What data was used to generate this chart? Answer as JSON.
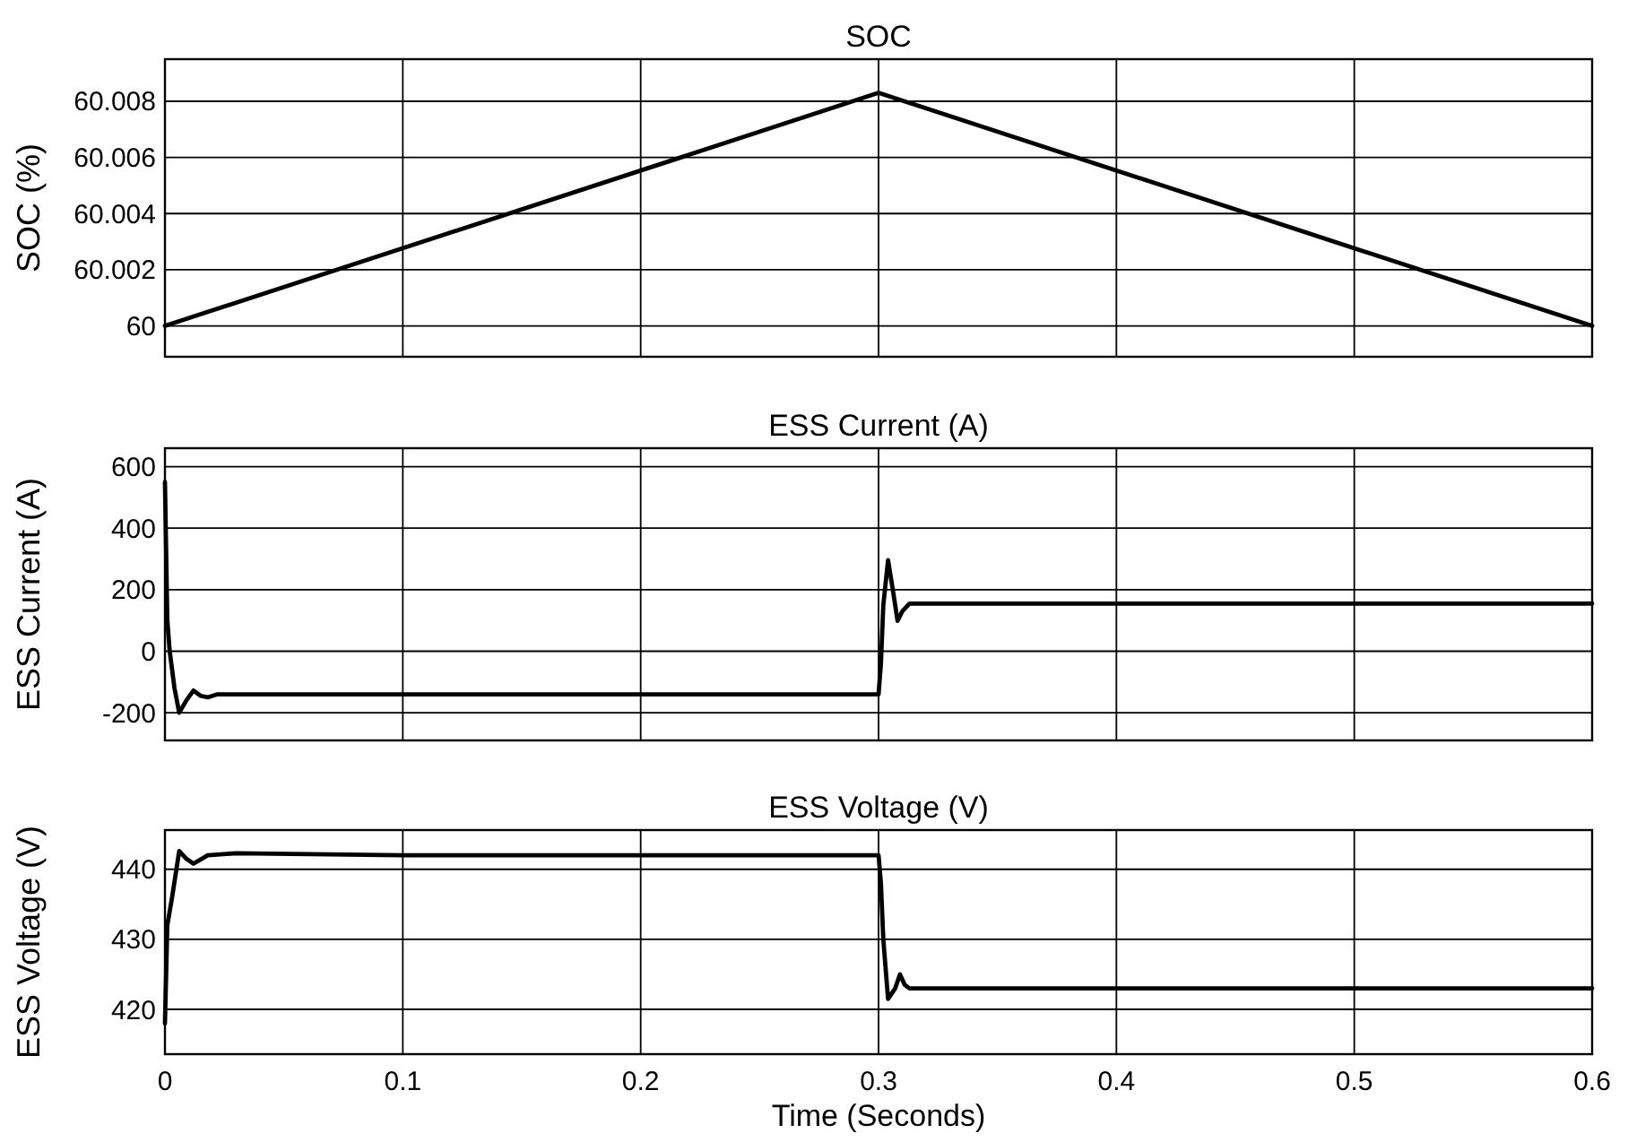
{
  "chart_data": [
    {
      "type": "line",
      "title": "SOC",
      "ylabel": "SOC (%)",
      "xlim": [
        0,
        0.6
      ],
      "xticks": [
        0,
        0.1,
        0.2,
        0.3,
        0.4,
        0.5,
        0.6
      ],
      "ylim": [
        59.9989,
        60.0095
      ],
      "yticks": [
        60,
        60.002,
        60.004,
        60.006,
        60.008
      ],
      "grid": true,
      "tick_labels": "y",
      "series": [
        {
          "color": "#000000",
          "x": [
            0,
            0.3,
            0.6
          ],
          "values": [
            60,
            60.0083,
            60
          ]
        }
      ]
    },
    {
      "type": "line",
      "title": "ESS Current (A)",
      "ylabel": "ESS Current (A)",
      "xlim": [
        0,
        0.6
      ],
      "xticks": [
        0,
        0.1,
        0.2,
        0.3,
        0.4,
        0.5,
        0.6
      ],
      "ylim": [
        -290,
        660
      ],
      "yticks": [
        -200,
        0,
        200,
        400,
        600
      ],
      "grid": true,
      "tick_labels": "y",
      "series": [
        {
          "color": "#000000",
          "x": [
            0,
            0.001,
            0.002,
            0.004,
            0.006,
            0.009,
            0.012,
            0.015,
            0.018,
            0.022,
            0.1,
            0.2,
            0.3,
            0.301,
            0.302,
            0.304,
            0.306,
            0.308,
            0.31,
            0.313,
            0.4,
            0.5,
            0.6
          ],
          "values": [
            550,
            100,
            0,
            -120,
            -200,
            -160,
            -128,
            -145,
            -150,
            -140,
            -140,
            -140,
            -140,
            -40,
            150,
            296,
            200,
            99,
            130,
            155,
            155,
            155,
            155
          ]
        }
      ]
    },
    {
      "type": "line",
      "title": "ESS Voltage (V)",
      "ylabel": "ESS Voltage (V)",
      "xlabel": "Time (Seconds)",
      "xlim": [
        0,
        0.6
      ],
      "xticks": [
        0,
        0.1,
        0.2,
        0.3,
        0.4,
        0.5,
        0.6
      ],
      "ylim": [
        413.6,
        445.6
      ],
      "yticks": [
        420,
        430,
        440
      ],
      "grid": true,
      "series": [
        {
          "color": "#000000",
          "x": [
            0,
            0.001,
            0.003,
            0.006,
            0.009,
            0.012,
            0.018,
            0.03,
            0.1,
            0.2,
            0.3,
            0.301,
            0.302,
            0.304,
            0.307,
            0.309,
            0.311,
            0.313,
            0.4,
            0.5,
            0.6
          ],
          "values": [
            418,
            432,
            436,
            442.6,
            441.5,
            440.8,
            442,
            442.3,
            442,
            442,
            442,
            438,
            430,
            421.5,
            423,
            425,
            423.5,
            423,
            423,
            423,
            423
          ]
        }
      ]
    }
  ]
}
